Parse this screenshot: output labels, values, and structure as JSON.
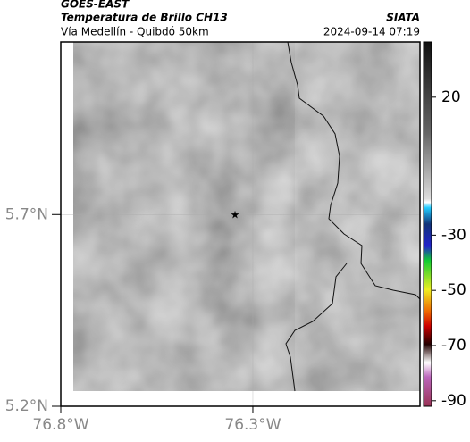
{
  "header": {
    "title": "GOES-EAST",
    "subtitle": "Temperatura de Brillo CH13",
    "source": "SIATA",
    "region": "Vía Medellín - Quibdó 50km",
    "timestamp": "2024-09-14 07:19"
  },
  "map": {
    "xlim": [
      -76.8,
      -75.865
    ],
    "ylim": [
      5.2,
      6.15
    ],
    "xticks": [
      {
        "value": -76.8,
        "label": "76.8°W"
      },
      {
        "value": -76.3,
        "label": "76.3°W"
      }
    ],
    "yticks": [
      {
        "value": 5.2,
        "label": "5.2°N"
      },
      {
        "value": 5.7,
        "label": "5.7°N"
      }
    ],
    "grid": true
  },
  "colorbar": {
    "lim": [
      -92,
      40
    ],
    "ticks": [
      20,
      -30,
      -50,
      -70,
      -90
    ]
  }
}
